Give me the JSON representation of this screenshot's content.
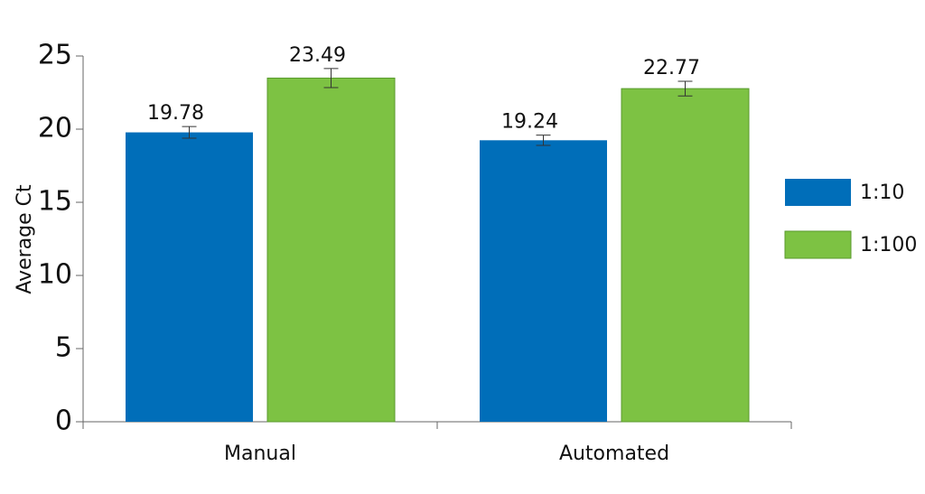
{
  "chart_data": {
    "type": "bar",
    "y_label": "Average Ct",
    "categories": [
      "Manual",
      "Automated"
    ],
    "series": [
      {
        "name": "1:10",
        "color": "#006eb9",
        "values": [
          19.78,
          19.24
        ],
        "errors": [
          0.4,
          0.35
        ]
      },
      {
        "name": "1:100",
        "color": "#7dc243",
        "values": [
          23.49,
          22.77
        ],
        "errors": [
          0.65,
          0.5
        ]
      }
    ],
    "ylim": [
      0,
      25
    ],
    "yticks": [
      0,
      5,
      10,
      15,
      20,
      25
    ],
    "legend": "right"
  }
}
